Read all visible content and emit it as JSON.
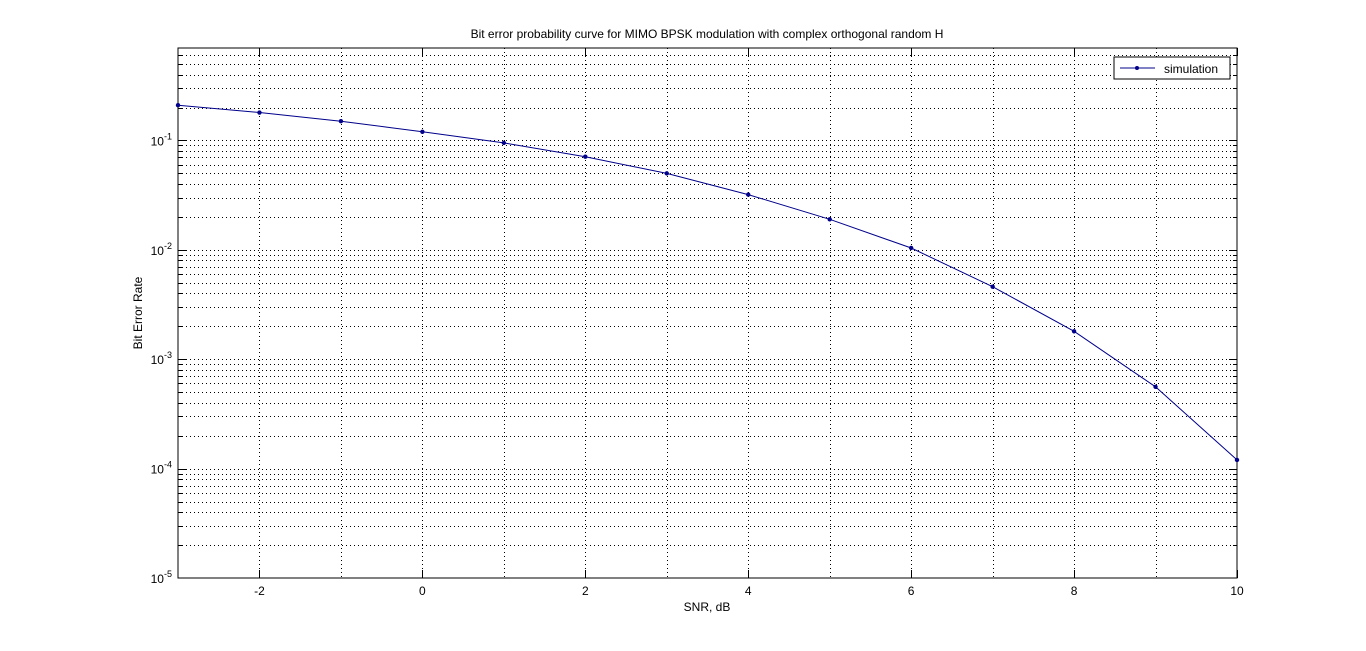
{
  "chart_data": {
    "type": "line",
    "title": "Bit error probability curve for MIMO BPSK modulation with complex orthogonal random H",
    "xlabel": "SNR, dB",
    "ylabel": "Bit Error Rate",
    "x_scale": "linear",
    "y_scale": "log",
    "xlim": [
      -3,
      10
    ],
    "ylim": [
      1e-05,
      0.7
    ],
    "grid": true,
    "legend_position": "top-right",
    "x_ticks": [
      -2,
      0,
      2,
      4,
      6,
      8,
      10
    ],
    "y_ticks": [
      {
        "value": 0.1,
        "base": "10",
        "exp": "-1"
      },
      {
        "value": 0.01,
        "base": "10",
        "exp": "-2"
      },
      {
        "value": 0.001,
        "base": "10",
        "exp": "-3"
      },
      {
        "value": 0.0001,
        "base": "10",
        "exp": "-4"
      },
      {
        "value": 1e-05,
        "base": "10",
        "exp": "-5"
      }
    ],
    "series": [
      {
        "name": "simulation",
        "color": "#00008b",
        "marker": "dot",
        "x": [
          -3,
          -2,
          -1,
          0,
          1,
          2,
          3,
          4,
          5,
          6,
          7,
          8,
          9,
          10
        ],
        "y": [
          0.21,
          0.18,
          0.15,
          0.12,
          0.095,
          0.071,
          0.05,
          0.032,
          0.019,
          0.0104,
          0.0046,
          0.0018,
          0.00056,
          0.00012
        ]
      }
    ]
  }
}
